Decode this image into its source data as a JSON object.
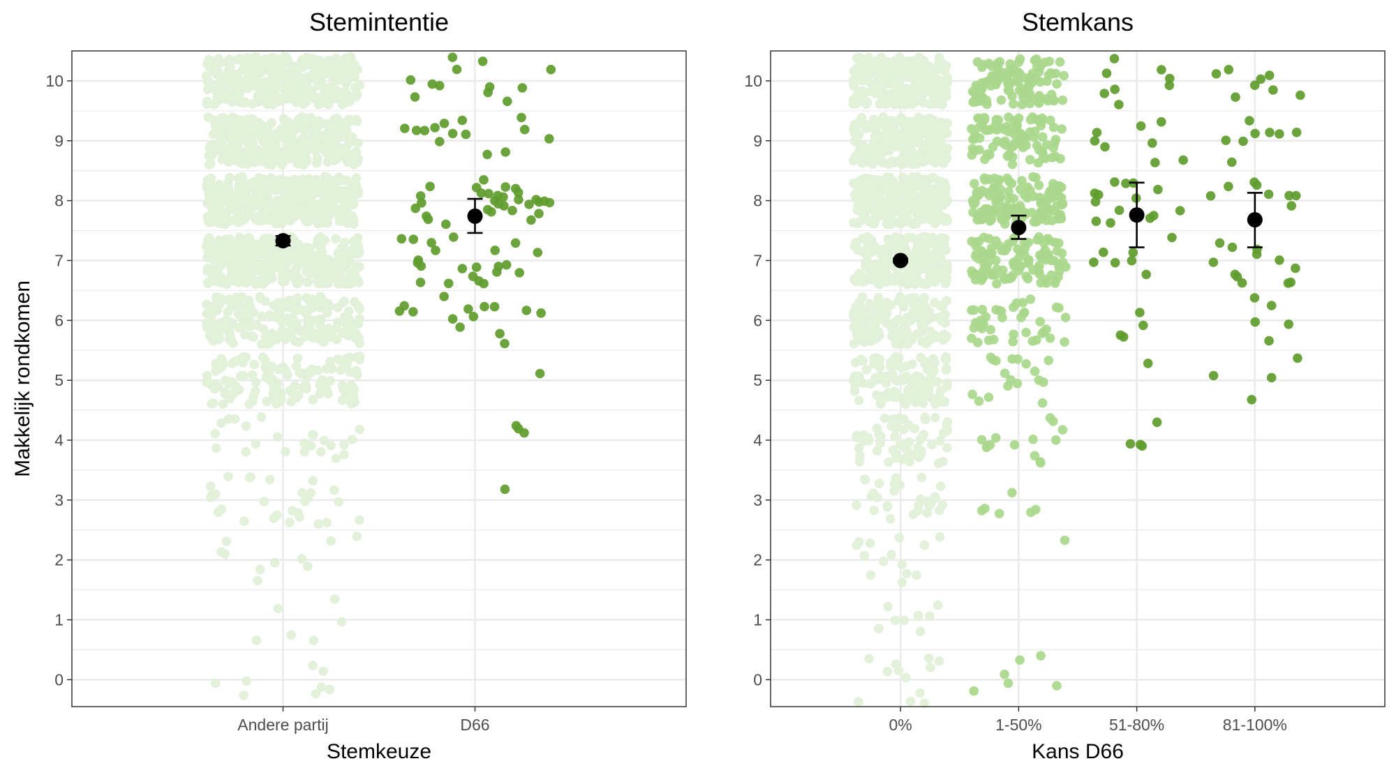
{
  "chart_data": [
    {
      "type": "scatter",
      "title": "Stemintentie",
      "xlabel": "Stemkeuze",
      "ylabel": "Makkelijk rondkomen",
      "categories": [
        "Andere partij",
        "D66"
      ],
      "ylim": [
        -0.45,
        10.5
      ],
      "yticks": [
        0,
        1,
        2,
        3,
        4,
        5,
        6,
        7,
        8,
        9,
        10
      ],
      "point_colors": [
        "#e2f0d9",
        "#5e9c2c"
      ],
      "groups": [
        {
          "category": "Andere partij",
          "counts": {
            "0": 8,
            "1": 6,
            "2": 10,
            "3": 28,
            "4": 24,
            "5": 140,
            "6": 190,
            "7": 340,
            "8": 370,
            "9": 320,
            "10": 340
          },
          "mean": 7.33,
          "ci": [
            7.25,
            7.41
          ]
        },
        {
          "category": "D66",
          "counts": {
            "0": 0,
            "1": 0,
            "2": 0,
            "3": 1,
            "4": 3,
            "5": 1,
            "6": 14,
            "7": 22,
            "8": 30,
            "9": 14,
            "10": 12
          },
          "mean": 7.74,
          "ci": [
            7.46,
            8.03
          ]
        }
      ]
    },
    {
      "type": "scatter",
      "title": "Stemkans",
      "xlabel": "Kans D66",
      "ylabel": "",
      "categories": [
        "0%",
        "1-50%",
        "51-80%",
        "81-100%"
      ],
      "ylim": [
        -0.45,
        10.5
      ],
      "yticks": [
        0,
        1,
        2,
        3,
        4,
        5,
        6,
        7,
        8,
        9,
        10
      ],
      "point_colors": [
        "#e2f0d9",
        "#a9d88c",
        "#5e9c2c",
        "#5e9c2c"
      ],
      "groups": [
        {
          "category": "0%",
          "counts": {
            "0": 12,
            "1": 8,
            "2": 14,
            "3": 30,
            "4": 60,
            "5": 120,
            "6": 150,
            "7": 210,
            "8": 260,
            "9": 200,
            "10": 220
          },
          "mean": 7.0,
          "ci": [
            6.97,
            7.03
          ]
        },
        {
          "category": "1-50%",
          "counts": {
            "0": 6,
            "1": 0,
            "2": 1,
            "3": 6,
            "4": 14,
            "5": 18,
            "6": 40,
            "7": 110,
            "8": 130,
            "9": 90,
            "10": 100
          },
          "mean": 7.55,
          "ci": [
            7.36,
            7.75
          ]
        },
        {
          "category": "51-80%",
          "counts": {
            "0": 0,
            "1": 0,
            "2": 0,
            "3": 0,
            "4": 4,
            "5": 1,
            "6": 4,
            "7": 7,
            "8": 14,
            "9": 8,
            "10": 8
          },
          "mean": 7.76,
          "ci": [
            7.22,
            8.3
          ]
        },
        {
          "category": "81-100%",
          "counts": {
            "0": 0,
            "1": 0,
            "2": 0,
            "3": 0,
            "4": 0,
            "5": 4,
            "6": 5,
            "7": 12,
            "8": 8,
            "9": 8,
            "10": 8
          },
          "mean": 7.68,
          "ci": [
            7.22,
            8.13
          ]
        }
      ]
    }
  ]
}
